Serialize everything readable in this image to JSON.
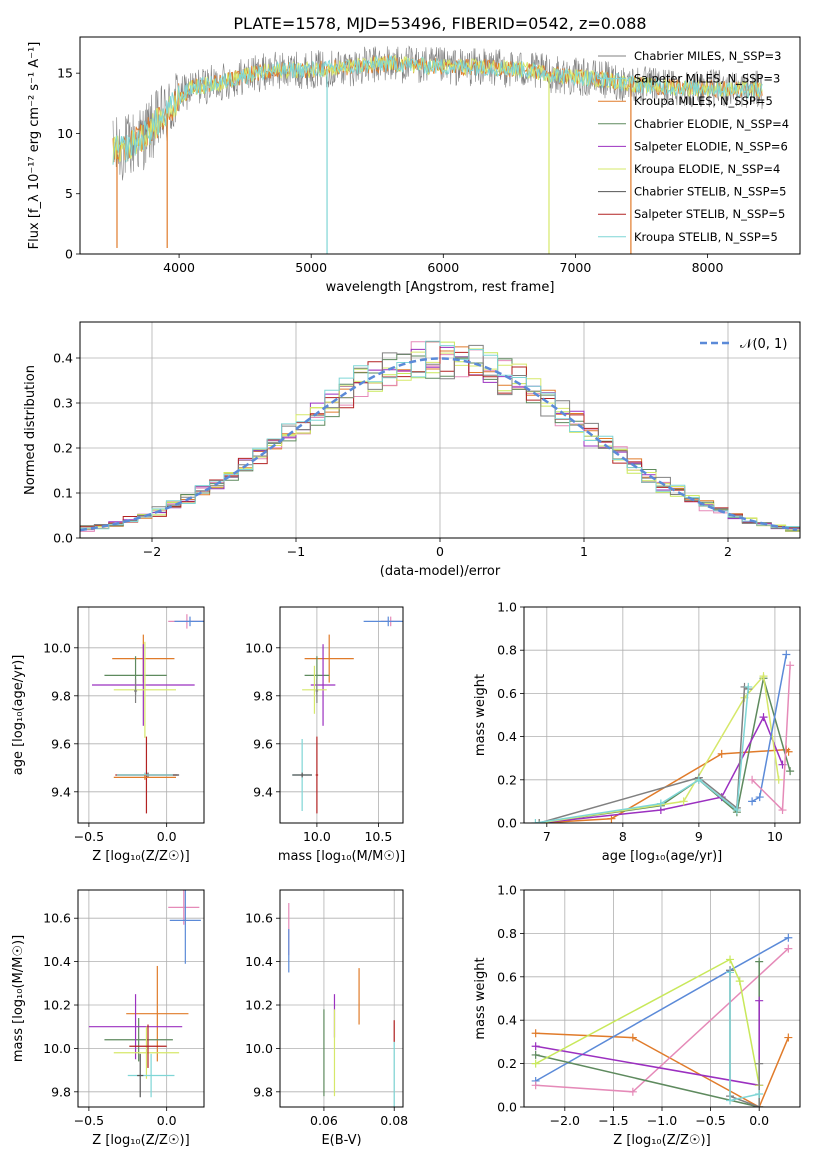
{
  "figure_title": "PLATE=1578, MJD=53496, FIBERID=0542, z=0.088",
  "colors": {
    "chabrier_miles": "#808080",
    "salpeter_miles": "#7fd6d6",
    "kroupa_miles": "#e07b2a",
    "chabrier_elodie": "#5e8a5e",
    "salpeter_elodie": "#9b30c0",
    "kroupa_elodie": "#d6e86a",
    "chabrier_stelib": "#555555",
    "salpeter_stelib": "#b22222",
    "kroupa_stelib": "#7fd6d6",
    "blue": "#5b8ad8",
    "pink": "#e58ab8",
    "lime": "#c8e85a",
    "grid": "#b0b0b0"
  },
  "chart_data": [
    {
      "id": "spectrum",
      "type": "line",
      "xlabel": "wavelength [Angstrom, rest frame]",
      "ylabel": "Flux [f_λ 10⁻¹⁷ erg cm⁻² s⁻¹ A⁻¹]",
      "xlim": [
        3250,
        8700
      ],
      "ylim": [
        0,
        18
      ],
      "xticks": [
        4000,
        5000,
        6000,
        7000,
        8000
      ],
      "yticks": [
        0,
        5,
        10,
        15
      ],
      "grid": false,
      "legend_position": "right",
      "legend": [
        "Chabrier MILES, N_SSP=3",
        "Salpeter MILES, N_SSP=3",
        "Kroupa MILES, N_SSP=5",
        "Chabrier ELODIE, N_SSP=4",
        "Salpeter ELODIE, N_SSP=6",
        "Kroupa ELODIE, N_SSP=4",
        "Chabrier STELIB, N_SSP=5",
        "Salpeter STELIB, N_SSP=5",
        "Kroupa STELIB, N_SSP=5"
      ],
      "continuum": [
        [
          3500,
          8.5
        ],
        [
          3600,
          8.8
        ],
        [
          3700,
          9.5
        ],
        [
          3800,
          10.5
        ],
        [
          3900,
          11.5
        ],
        [
          4000,
          13.0
        ],
        [
          4100,
          13.8
        ],
        [
          4300,
          14.2
        ],
        [
          4500,
          14.8
        ],
        [
          4700,
          15.2
        ],
        [
          5000,
          15.3
        ],
        [
          5300,
          15.5
        ],
        [
          5600,
          15.8
        ],
        [
          5900,
          15.6
        ],
        [
          6100,
          15.5
        ],
        [
          6300,
          15.5
        ],
        [
          6600,
          15.3
        ],
        [
          6900,
          14.8
        ],
        [
          7200,
          14.5
        ],
        [
          7500,
          14.0
        ],
        [
          7800,
          13.8
        ],
        [
          8100,
          13.7
        ],
        [
          8400,
          13.6
        ]
      ],
      "dips": [
        [
          3530,
          0.5
        ],
        [
          3910,
          0.5
        ],
        [
          5120,
          0.0
        ],
        [
          6800,
          0.0
        ],
        [
          7420,
          0.0
        ]
      ]
    },
    {
      "id": "residuals",
      "type": "line",
      "xlabel": "(data-model)/error",
      "ylabel": "Normed distribution",
      "xlim": [
        -2.5,
        2.5
      ],
      "ylim": [
        0,
        0.48
      ],
      "xticks": [
        -2,
        -1,
        0,
        1,
        2
      ],
      "yticks": [
        0.0,
        0.1,
        0.2,
        0.3,
        0.4
      ],
      "grid": true,
      "legend_position": "top-right",
      "legend": [
        "𝒩(0, 1)"
      ],
      "normal_curve": {
        "mean": 0,
        "sd": 1
      },
      "bin_width": 0.1
    },
    {
      "id": "age_vs_Z",
      "type": "scatter",
      "xlabel": "Z [log₁₀(Z/Z☉)]",
      "ylabel": "age  [log₁₀(age/yr)]",
      "xlim": [
        -0.57,
        0.24
      ],
      "ylim": [
        9.27,
        10.17
      ],
      "xticks": [
        -0.5,
        0.0
      ],
      "yticks": [
        9.4,
        9.6,
        9.8,
        10.0
      ],
      "grid": true,
      "points": [
        {
          "x": 0.13,
          "xerr": 0.12,
          "y": 10.11,
          "yerr": 0.03,
          "color": "pink"
        },
        {
          "x": 0.15,
          "xerr": 0.1,
          "y": 10.11,
          "yerr": 0.02,
          "color": "blue"
        },
        {
          "x": -0.15,
          "xerr": 0.2,
          "y": 9.955,
          "yerr": 0.1,
          "color": "kroupa_miles"
        },
        {
          "x": -0.2,
          "xerr": 0.2,
          "y": 9.885,
          "yerr": 0.08,
          "color": "chabrier_elodie"
        },
        {
          "x": -0.15,
          "xerr": 0.33,
          "y": 9.845,
          "yerr": 0.17,
          "color": "salpeter_elodie"
        },
        {
          "x": -0.14,
          "xerr": 0.2,
          "y": 9.825,
          "yerr": 0.2,
          "color": "kroupa_elodie"
        },
        {
          "x": -0.2,
          "xerr": 0.01,
          "y": 9.82,
          "yerr": 0.05,
          "color": "chabrier_miles"
        },
        {
          "x": -0.13,
          "xerr": 0.2,
          "y": 9.47,
          "yerr": 0.16,
          "color": "salpeter_stelib"
        },
        {
          "x": -0.12,
          "xerr": 0.2,
          "y": 9.47,
          "yerr": 0.01,
          "color": "chabrier_stelib"
        },
        {
          "x": -0.14,
          "xerr": 0.18,
          "y": 9.47,
          "yerr": 0.01,
          "color": "kroupa_stelib"
        },
        {
          "x": -0.14,
          "xerr": 0.2,
          "y": 9.46,
          "yerr": 0.01,
          "color": "kroupa_miles"
        }
      ]
    },
    {
      "id": "age_vs_mass",
      "type": "scatter",
      "xlabel": "mass [log₁₀(M/M☉)]",
      "ylabel": "",
      "xlim": [
        9.7,
        10.7
      ],
      "ylim": [
        9.27,
        10.17
      ],
      "xticks": [
        10.0,
        10.5
      ],
      "yticks": [
        9.4,
        9.6,
        9.8,
        10.0
      ],
      "grid": true,
      "points": [
        {
          "x": 10.6,
          "xerr": 0.08,
          "y": 10.11,
          "yerr": 0.02,
          "color": "pink"
        },
        {
          "x": 10.58,
          "xerr": 0.2,
          "y": 10.11,
          "yerr": 0.02,
          "color": "blue"
        },
        {
          "x": 10.1,
          "xerr": 0.2,
          "y": 9.955,
          "yerr": 0.1,
          "color": "kroupa_miles"
        },
        {
          "x": 10.0,
          "xerr": 0.1,
          "y": 9.885,
          "yerr": 0.08,
          "color": "chabrier_elodie"
        },
        {
          "x": 10.05,
          "xerr": 0.1,
          "y": 9.845,
          "yerr": 0.17,
          "color": "salpeter_elodie"
        },
        {
          "x": 9.98,
          "xerr": 0.1,
          "y": 9.825,
          "yerr": 0.1,
          "color": "kroupa_elodie"
        },
        {
          "x": 10.0,
          "xerr": 0.01,
          "y": 9.82,
          "yerr": 0.05,
          "color": "chabrier_miles"
        },
        {
          "x": 10.0,
          "xerr": 0.01,
          "y": 9.47,
          "yerr": 0.16,
          "color": "salpeter_stelib"
        },
        {
          "x": 9.88,
          "xerr": 0.08,
          "y": 9.47,
          "yerr": 0.15,
          "color": "kroupa_stelib"
        },
        {
          "x": 9.88,
          "xerr": 0.08,
          "y": 9.47,
          "yerr": 0.01,
          "color": "chabrier_stelib"
        }
      ]
    },
    {
      "id": "weight_vs_age",
      "type": "line",
      "xlabel": "age  [log₁₀(age/yr)]",
      "ylabel": "mass weight",
      "xlim": [
        6.7,
        10.33
      ],
      "ylim": [
        0,
        1.0
      ],
      "xticks": [
        7,
        8,
        9,
        10
      ],
      "yticks": [
        0.0,
        0.2,
        0.4,
        0.6,
        0.8,
        1.0
      ],
      "grid": true,
      "series": [
        {
          "color": "kroupa_miles",
          "x": [
            6.9,
            7.85,
            9.3,
            10.15,
            10.18
          ],
          "y": [
            0.0,
            0.02,
            0.32,
            0.34,
            0.33
          ]
        },
        {
          "color": "chabrier_elodie",
          "x": [
            6.9,
            8.5,
            9.0,
            9.5,
            9.85,
            10.2
          ],
          "y": [
            0.0,
            0.08,
            0.2,
            0.05,
            0.67,
            0.24
          ]
        },
        {
          "color": "salpeter_elodie",
          "x": [
            6.9,
            8.5,
            9.3,
            9.85,
            10.1
          ],
          "y": [
            0.0,
            0.06,
            0.12,
            0.49,
            0.27
          ]
        },
        {
          "color": "kroupa_elodie",
          "x": [
            6.9,
            8.8,
            9.6,
            9.85,
            10.05
          ],
          "y": [
            0.0,
            0.1,
            0.58,
            0.68,
            0.2
          ]
        },
        {
          "color": "chabrier_miles",
          "x": [
            6.9,
            9.0,
            9.5,
            9.6,
            9.65
          ],
          "y": [
            0.0,
            0.21,
            0.07,
            0.63,
            0.62
          ]
        },
        {
          "color": "blue",
          "x": [
            9.7,
            9.8,
            10.15
          ],
          "y": [
            0.1,
            0.12,
            0.78
          ]
        },
        {
          "color": "pink",
          "x": [
            9.7,
            10.1,
            10.2
          ],
          "y": [
            0.2,
            0.06,
            0.73
          ]
        },
        {
          "color": "kroupa_stelib",
          "x": [
            6.85,
            8.5,
            9.0,
            9.5,
            9.65
          ],
          "y": [
            0.0,
            0.09,
            0.2,
            0.06,
            0.63
          ]
        }
      ]
    },
    {
      "id": "mass_vs_Z",
      "type": "scatter",
      "xlabel": "Z [log₁₀(Z/Z☉)]",
      "ylabel": "mass [log₁₀(M/M☉)]",
      "xlim": [
        -0.57,
        0.24
      ],
      "ylim": [
        9.73,
        10.73
      ],
      "xticks": [
        -0.5,
        0.0
      ],
      "yticks": [
        9.8,
        10.0,
        10.2,
        10.4,
        10.6
      ],
      "grid": true,
      "points": [
        {
          "x": 0.11,
          "xerr": 0.1,
          "y": 10.65,
          "yerr": 0.08,
          "color": "pink"
        },
        {
          "x": 0.12,
          "xerr": 0.1,
          "y": 10.59,
          "yerr": 0.2,
          "color": "blue"
        },
        {
          "x": -0.06,
          "xerr": 0.2,
          "y": 10.16,
          "yerr": 0.22,
          "color": "kroupa_miles"
        },
        {
          "x": -0.18,
          "xerr": 0.22,
          "y": 10.04,
          "yerr": 0.1,
          "color": "chabrier_elodie"
        },
        {
          "x": -0.2,
          "xerr": 0.3,
          "y": 10.1,
          "yerr": 0.15,
          "color": "salpeter_elodie"
        },
        {
          "x": -0.13,
          "xerr": 0.21,
          "y": 9.98,
          "yerr": 0.12,
          "color": "kroupa_elodie"
        },
        {
          "x": -0.12,
          "xerr": 0.12,
          "y": 10.01,
          "yerr": 0.1,
          "color": "salpeter_stelib"
        },
        {
          "x": -0.1,
          "xerr": 0.15,
          "y": 9.875,
          "yerr": 0.1,
          "color": "kroupa_stelib"
        },
        {
          "x": -0.17,
          "xerr": 0.02,
          "y": 9.875,
          "yerr": 0.1,
          "color": "chabrier_stelib"
        }
      ]
    },
    {
      "id": "mass_vs_ebv",
      "type": "scatter",
      "xlabel": "E(B-V)",
      "ylabel": "",
      "xlim": [
        0.0475,
        0.0825
      ],
      "ylim": [
        9.73,
        10.73
      ],
      "xticks": [
        0.06,
        0.08
      ],
      "yticks": [
        9.8,
        10.0,
        10.2,
        10.4,
        10.6
      ],
      "grid": true,
      "points": [
        {
          "x": 0.05,
          "y": 10.55,
          "yerr": 0.12,
          "color": "pink"
        },
        {
          "x": 0.05,
          "y": 10.45,
          "yerr": 0.1,
          "color": "blue"
        },
        {
          "x": 0.07,
          "y": 10.24,
          "yerr": 0.13,
          "color": "kroupa_miles"
        },
        {
          "x": 0.06,
          "y": 9.98,
          "yerr": 0.2,
          "color": "chabrier_elodie"
        },
        {
          "x": 0.063,
          "y": 10.15,
          "yerr": 0.1,
          "color": "salpeter_elodie"
        },
        {
          "x": 0.063,
          "y": 9.98,
          "yerr": 0.2,
          "color": "kroupa_elodie"
        },
        {
          "x": 0.08,
          "y": 10.08,
          "yerr": 0.05,
          "color": "salpeter_stelib"
        },
        {
          "x": 0.08,
          "y": 9.88,
          "yerr": 0.15,
          "color": "kroupa_stelib"
        }
      ]
    },
    {
      "id": "weight_vs_Z",
      "type": "line",
      "xlabel": "Z [log₁₀(Z/Z☉)]",
      "ylabel": "mass weight",
      "xlim": [
        -2.42,
        0.42
      ],
      "ylim": [
        0,
        1.0
      ],
      "xticks": [
        -2.0,
        -1.5,
        -1.0,
        -0.5,
        0.0
      ],
      "yticks": [
        0.0,
        0.2,
        0.4,
        0.6,
        0.8,
        1.0
      ],
      "grid": true,
      "series": [
        {
          "color": "kroupa_miles",
          "x": [
            -2.3,
            -1.3,
            -0.0,
            0.3
          ],
          "y": [
            0.34,
            0.32,
            0.0,
            0.32
          ]
        },
        {
          "color": "blue",
          "x": [
            -2.3,
            -0.3,
            0.3
          ],
          "y": [
            0.12,
            0.63,
            0.78
          ]
        },
        {
          "color": "pink",
          "x": [
            -2.3,
            -1.3,
            0.3
          ],
          "y": [
            0.1,
            0.07,
            0.73
          ]
        },
        {
          "color": "chabrier_elodie",
          "x": [
            -2.3,
            0.0,
            0.0
          ],
          "y": [
            0.24,
            0.0,
            0.67
          ]
        },
        {
          "color": "salpeter_elodie",
          "x": [
            -2.3,
            0.0,
            0.0
          ],
          "y": [
            0.28,
            0.1,
            0.49
          ]
        },
        {
          "color": "lime",
          "x": [
            -2.3,
            -0.3,
            -0.2,
            0.0
          ],
          "y": [
            0.2,
            0.68,
            0.58,
            0.1
          ]
        },
        {
          "color": "chabrier_miles",
          "x": [
            -0.3,
            -0.3,
            0.0,
            0.0
          ],
          "y": [
            0.63,
            0.05,
            0.0,
            0.2
          ]
        },
        {
          "color": "kroupa_stelib",
          "x": [
            -0.3,
            -0.3,
            0.0
          ],
          "y": [
            0.62,
            0.03,
            0.06
          ]
        }
      ]
    }
  ]
}
